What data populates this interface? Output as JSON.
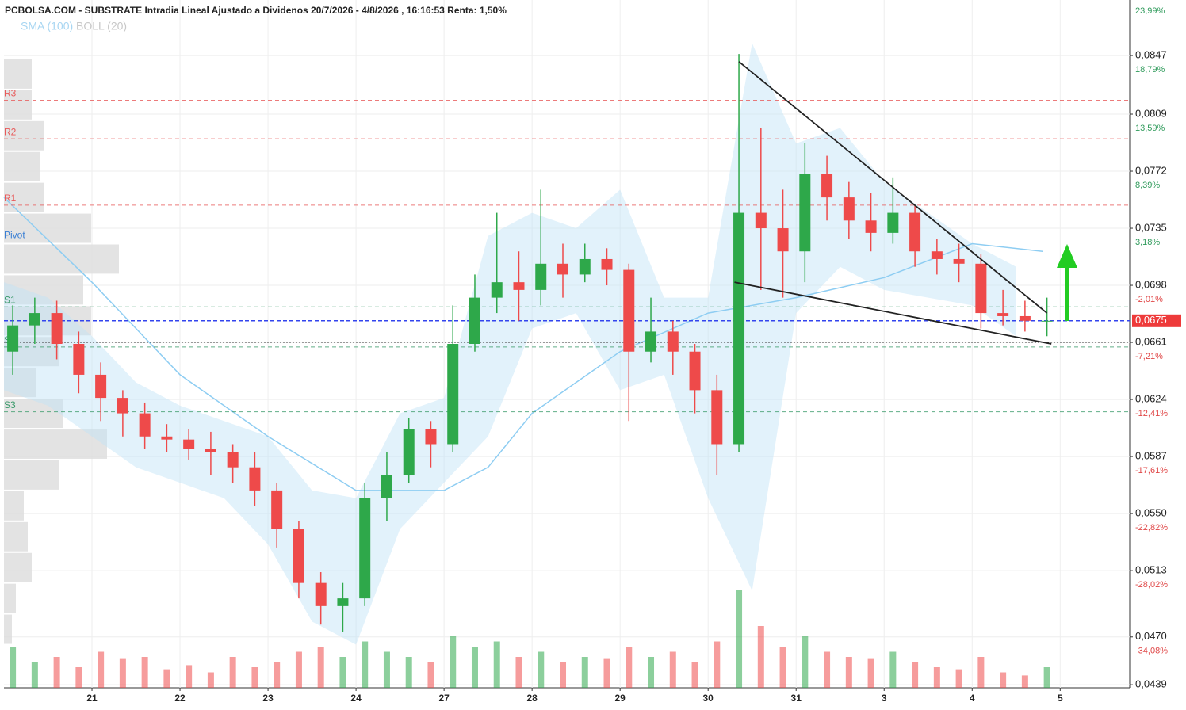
{
  "chart_data": {
    "type": "candlestick",
    "title": "PCBOLSA.COM - SUBSTRATE Intradia Lineal Ajustado a Dividenos 20/7/2026 - 4/8/2026 , 16:16:53 Renta: 1,50%",
    "xlim": [
      0,
      12.79
    ],
    "xticks": [
      {
        "value": 1,
        "label": "21"
      },
      {
        "value": 2,
        "label": "22"
      },
      {
        "value": 3,
        "label": "23"
      },
      {
        "value": 4,
        "label": "24"
      },
      {
        "value": 5,
        "label": "27"
      },
      {
        "value": 6,
        "label": "28"
      },
      {
        "value": 7,
        "label": "29"
      },
      {
        "value": 8,
        "label": "30"
      },
      {
        "value": 9,
        "label": "31"
      },
      {
        "value": 10,
        "label": "3"
      },
      {
        "value": 11,
        "label": "4"
      },
      {
        "value": 12,
        "label": "5"
      }
    ],
    "ylim": [
      0.0437,
      0.0883
    ],
    "yticks": [
      {
        "value": 0.0847,
        "label": "0,0847"
      },
      {
        "value": 0.0809,
        "label": "0,0809"
      },
      {
        "value": 0.0772,
        "label": "0,0772"
      },
      {
        "value": 0.0735,
        "label": "0,0735"
      },
      {
        "value": 0.0698,
        "label": "0,0698"
      },
      {
        "value": 0.0661,
        "label": "0,0661"
      },
      {
        "value": 0.0624,
        "label": "0,0624"
      },
      {
        "value": 0.0587,
        "label": "0,0587"
      },
      {
        "value": 0.055,
        "label": "0,0550"
      },
      {
        "value": 0.0513,
        "label": "0,0513"
      },
      {
        "value": 0.047,
        "label": "0,0470"
      },
      {
        "value": 0.0439,
        "label": "0,0439"
      }
    ],
    "top_percent": {
      "value": 23.99,
      "label": "23,99%"
    },
    "percent_labels": [
      {
        "value": 18.79,
        "label": "18,79%"
      },
      {
        "value": 13.59,
        "label": "13,59%"
      },
      {
        "value": 8.39,
        "label": "8,39%"
      },
      {
        "value": 3.18,
        "label": "3,18%"
      },
      {
        "value": -2.01,
        "label": "-2,01%"
      },
      {
        "value": -7.21,
        "label": "-7,21%"
      },
      {
        "value": -12.41,
        "label": "-12,41%"
      },
      {
        "value": -17.61,
        "label": "-17,61%"
      },
      {
        "value": -22.82,
        "label": "-22,82%"
      },
      {
        "value": -28.02,
        "label": "-28,02%"
      },
      {
        "value": -34.08,
        "label": "-34,08%"
      }
    ],
    "up_color": "#2ea84a",
    "down_color": "#ee4a4a",
    "candles": {
      "x": [
        0.1,
        0.35,
        0.6,
        0.85,
        1.1,
        1.35,
        1.6,
        1.85,
        2.1,
        2.35,
        2.6,
        2.85,
        3.1,
        3.35,
        3.6,
        3.85,
        4.1,
        4.35,
        4.6,
        4.85,
        5.1,
        5.35,
        5.6,
        5.85,
        6.1,
        6.35,
        6.6,
        6.85,
        7.1,
        7.35,
        7.6,
        7.85,
        8.1,
        8.35,
        8.6,
        8.85,
        9.1,
        9.35,
        9.6,
        9.85,
        10.1,
        10.35,
        10.6,
        10.85,
        11.1,
        11.35,
        11.6,
        11.85
      ],
      "open": [
        0.0655,
        0.0672,
        0.068,
        0.066,
        0.064,
        0.0625,
        0.0615,
        0.06,
        0.0598,
        0.0592,
        0.059,
        0.058,
        0.0565,
        0.054,
        0.0505,
        0.049,
        0.0495,
        0.056,
        0.0575,
        0.0605,
        0.0595,
        0.066,
        0.069,
        0.07,
        0.0695,
        0.0712,
        0.0705,
        0.0715,
        0.0708,
        0.0655,
        0.0668,
        0.0655,
        0.063,
        0.0595,
        0.0745,
        0.0735,
        0.072,
        0.077,
        0.0755,
        0.074,
        0.0732,
        0.0745,
        0.072,
        0.0715,
        0.0712,
        0.068,
        0.0678,
        0.0675
      ],
      "high": [
        0.0685,
        0.069,
        0.0688,
        0.0668,
        0.0648,
        0.063,
        0.0622,
        0.0608,
        0.0605,
        0.0603,
        0.0595,
        0.059,
        0.057,
        0.0545,
        0.0512,
        0.0505,
        0.057,
        0.059,
        0.0612,
        0.061,
        0.0685,
        0.0705,
        0.0745,
        0.072,
        0.076,
        0.0725,
        0.0725,
        0.0722,
        0.0712,
        0.069,
        0.0675,
        0.066,
        0.064,
        0.0848,
        0.08,
        0.076,
        0.079,
        0.0782,
        0.0765,
        0.0758,
        0.0768,
        0.075,
        0.0728,
        0.0725,
        0.0718,
        0.0695,
        0.0688,
        0.069
      ],
      "low": [
        0.064,
        0.066,
        0.065,
        0.0628,
        0.061,
        0.06,
        0.0592,
        0.059,
        0.0585,
        0.0575,
        0.057,
        0.0555,
        0.0528,
        0.0495,
        0.0478,
        0.0473,
        0.049,
        0.0545,
        0.057,
        0.058,
        0.059,
        0.0655,
        0.068,
        0.0675,
        0.0685,
        0.069,
        0.07,
        0.0698,
        0.061,
        0.0648,
        0.064,
        0.0615,
        0.0575,
        0.059,
        0.0695,
        0.069,
        0.07,
        0.074,
        0.0728,
        0.072,
        0.0725,
        0.071,
        0.0705,
        0.07,
        0.067,
        0.0672,
        0.0668,
        0.0665
      ],
      "close": [
        0.0672,
        0.068,
        0.066,
        0.064,
        0.0625,
        0.0615,
        0.06,
        0.0598,
        0.0592,
        0.059,
        0.058,
        0.0565,
        0.054,
        0.0505,
        0.049,
        0.0495,
        0.056,
        0.0575,
        0.0605,
        0.0595,
        0.066,
        0.069,
        0.07,
        0.0695,
        0.0712,
        0.0705,
        0.0715,
        0.0708,
        0.0655,
        0.0668,
        0.0655,
        0.063,
        0.0595,
        0.0745,
        0.0735,
        0.072,
        0.077,
        0.0755,
        0.074,
        0.0732,
        0.0745,
        0.072,
        0.0715,
        0.0712,
        0.068,
        0.0678,
        0.0675,
        0.0675
      ],
      "volume": [
        40,
        25,
        30,
        20,
        35,
        28,
        30,
        18,
        22,
        15,
        30,
        20,
        25,
        35,
        40,
        30,
        45,
        35,
        30,
        25,
        50,
        40,
        45,
        30,
        35,
        25,
        30,
        28,
        40,
        30,
        35,
        25,
        45,
        95,
        60,
        40,
        50,
        35,
        30,
        28,
        35,
        25,
        20,
        18,
        30,
        15,
        12,
        20
      ]
    },
    "y2lim": [
      0,
      100
    ],
    "series": [
      {
        "name": "SMA (100)",
        "color": "#8ecdf2",
        "x": [
          0,
          1,
          1.5,
          2,
          3,
          4,
          5,
          5.5,
          6,
          7,
          8,
          9,
          10,
          11,
          11.8
        ],
        "values": [
          0.0755,
          0.07,
          0.067,
          0.064,
          0.06,
          0.0565,
          0.0565,
          0.058,
          0.0615,
          0.0655,
          0.068,
          0.069,
          0.0703,
          0.0725,
          0.072
        ]
      },
      {
        "name": "BOLL (20)",
        "color": "#bfe2f7",
        "x": [
          0,
          0.5,
          1,
          1.5,
          2,
          2.5,
          3,
          3.5,
          4,
          4.5,
          5,
          5.5,
          6,
          6.5,
          7,
          7.5,
          8,
          8.5,
          9,
          9.5,
          10,
          10.5,
          11,
          11.5
        ],
        "upper": [
          0.07,
          0.069,
          0.0665,
          0.0635,
          0.062,
          0.061,
          0.06,
          0.0565,
          0.056,
          0.0615,
          0.0625,
          0.073,
          0.0745,
          0.0735,
          0.076,
          0.069,
          0.069,
          0.0855,
          0.079,
          0.08,
          0.0765,
          0.0745,
          0.0725,
          0.071
        ],
        "lower": [
          0.063,
          0.062,
          0.06,
          0.058,
          0.057,
          0.056,
          0.053,
          0.048,
          0.0465,
          0.054,
          0.057,
          0.06,
          0.067,
          0.068,
          0.063,
          0.064,
          0.056,
          0.05,
          0.068,
          0.071,
          0.0695,
          0.069,
          0.0685,
          0.0665
        ]
      }
    ],
    "profile": {
      "prices": [
        0.0475,
        0.0495,
        0.0515,
        0.0535,
        0.0555,
        0.0575,
        0.0595,
        0.0615,
        0.0635,
        0.0655,
        0.0675,
        0.0695,
        0.0715,
        0.0735,
        0.0755,
        0.0775,
        0.0795,
        0.0815,
        0.0835
      ],
      "values": [
        10,
        15,
        35,
        30,
        25,
        70,
        130,
        75,
        40,
        70,
        110,
        100,
        145,
        110,
        50,
        45,
        50,
        35,
        35
      ]
    },
    "levels": [
      {
        "name": "R3",
        "value": 0.0818,
        "color": "#e85a5a"
      },
      {
        "name": "R2",
        "value": 0.0793,
        "color": "#e85a5a"
      },
      {
        "name": "R1",
        "value": 0.075,
        "color": "#e85a5a"
      },
      {
        "name": "Pivot",
        "value": 0.0726,
        "color": "#3a7fd4"
      },
      {
        "name": "S1",
        "value": 0.0684,
        "color": "#3a9a6a"
      },
      {
        "name": "S2",
        "value": 0.0658,
        "color": "#3a9a6a"
      },
      {
        "name": "S3",
        "value": 0.0616,
        "color": "#3a9a6a"
      }
    ],
    "reference_line": 0.0661,
    "last": {
      "value": 0.0675,
      "label": "0,0675"
    },
    "trendlines": [
      {
        "x": [
          8.35,
          11.85
        ],
        "y": [
          0.0843,
          0.068
        ]
      },
      {
        "x": [
          8.3,
          11.9
        ],
        "y": [
          0.07,
          0.066
        ]
      }
    ],
    "grid": true
  }
}
